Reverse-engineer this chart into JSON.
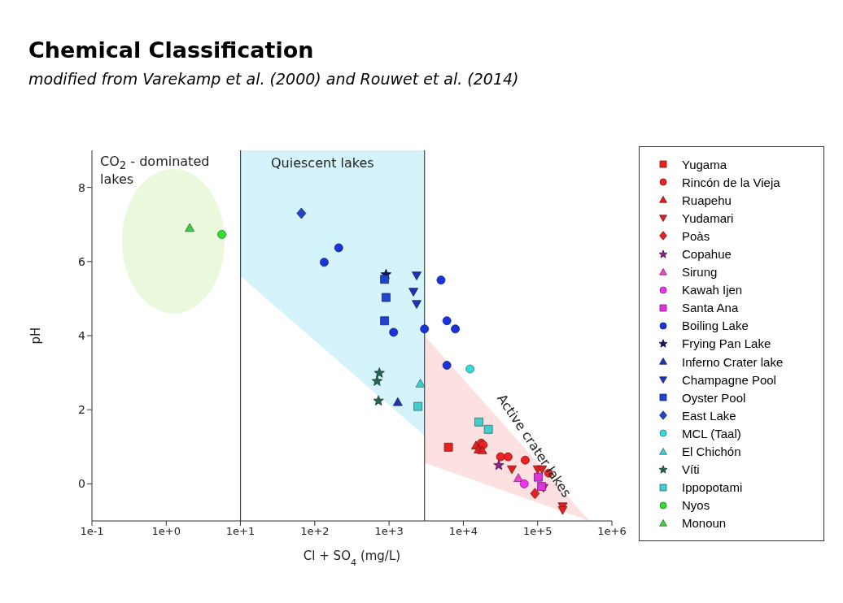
{
  "chart_data": {
    "type": "scatter",
    "title": "Chemical Classification",
    "subtitle": "modified from Varekamp et al. (2000) and Rouwet et al. (2014)",
    "xlabel": "Cl + SO$_{4}$ (mg/L)",
    "ylabel": "pH",
    "log": "x",
    "xlim": [
      0.1,
      1000000
    ],
    "xticks": [
      {
        "value": 0.1,
        "label": "1e-1"
      },
      {
        "value": 1,
        "label": "1e+0"
      },
      {
        "value": 10,
        "label": "1e+1"
      },
      {
        "value": 100,
        "label": "1e+2"
      },
      {
        "value": 1000,
        "label": "1e+3"
      },
      {
        "value": 10000,
        "label": "1e+4"
      },
      {
        "value": 100000,
        "label": "1e+5"
      },
      {
        "value": 1000000,
        "label": "1e+6"
      }
    ],
    "ylim": [
      -1,
      9
    ],
    "yticks": [
      0,
      2,
      4,
      6,
      8
    ],
    "legend": "right",
    "ref_lines": [
      {
        "axis": "x",
        "value": 10,
        "color": "#444444"
      },
      {
        "axis": "x",
        "value": 3000,
        "color": "#444444"
      }
    ],
    "annotations": [
      "CO$_{2}$ - dominated lakes",
      "Quiescent lakes",
      "Active crater lakes"
    ],
    "series": [
      {
        "name": "Yugama",
        "color": "#e8221f",
        "marker": "square",
        "x": [
          6300
        ],
        "values": [
          0.99
        ]
      },
      {
        "name": "Rincón de la Vieja",
        "color": "#ee2222",
        "marker": "circle",
        "x": [
          17400,
          18500,
          31700,
          40000,
          68000,
          141000
        ],
        "values": [
          1.1,
          1.05,
          0.73,
          0.73,
          0.64,
          0.29
        ]
      },
      {
        "name": "Ruapehu",
        "color": "#dd2222",
        "marker": "triangle",
        "x": [
          14800,
          16000,
          18000
        ],
        "values": [
          1.03,
          0.92,
          0.9
        ]
      },
      {
        "name": "Yudamari",
        "color": "#dd2222",
        "marker": "triangle-down",
        "x": [
          45000,
          100000,
          115000,
          120000,
          217000,
          217000
        ],
        "values": [
          0.4,
          0.4,
          0.4,
          -0.1,
          -0.6,
          -0.7
        ]
      },
      {
        "name": "Poàs",
        "color": "#e62222",
        "marker": "diamond",
        "x": [
          92000
        ],
        "values": [
          -0.26
        ]
      },
      {
        "name": "Copahue",
        "color": "#882288",
        "marker": "star",
        "x": [
          30000
        ],
        "values": [
          0.5
        ]
      },
      {
        "name": "Sirung",
        "color": "#ee44cc",
        "marker": "triangle",
        "x": [
          55000
        ],
        "values": [
          0.15
        ]
      },
      {
        "name": "Kawah Ijen",
        "color": "#ee33ee",
        "marker": "circle",
        "x": [
          66000
        ],
        "values": [
          0.0
        ]
      },
      {
        "name": "Santa Ana",
        "color": "#dd33dd",
        "marker": "square",
        "x": [
          102000,
          113000
        ],
        "values": [
          0.18,
          -0.07
        ]
      },
      {
        "name": "Boiling Lake",
        "color": "#1a33dd",
        "marker": "circle",
        "x": [
          134,
          210,
          1150,
          3000,
          5000,
          6000,
          7800,
          6000
        ],
        "values": [
          5.98,
          6.37,
          4.09,
          4.18,
          5.5,
          4.4,
          4.18,
          3.2
        ]
      },
      {
        "name": "Frying Pan Lake",
        "color": "#111166",
        "marker": "star",
        "x": [
          910
        ],
        "values": [
          5.65
        ]
      },
      {
        "name": "Inferno Crater lake",
        "color": "#2233aa",
        "marker": "triangle",
        "x": [
          1310
        ],
        "values": [
          2.2
        ]
      },
      {
        "name": "Champagne Pool",
        "color": "#2233bb",
        "marker": "triangle-down",
        "x": [
          2350,
          2130,
          2350
        ],
        "values": [
          5.63,
          5.19,
          4.86
        ]
      },
      {
        "name": "Oyster Pool",
        "color": "#2244cc",
        "marker": "square",
        "x": [
          870,
          910,
          870
        ],
        "values": [
          5.52,
          5.03,
          4.4
        ]
      },
      {
        "name": "East Lake",
        "color": "#2244cc",
        "marker": "diamond",
        "x": [
          66
        ],
        "values": [
          7.3
        ]
      },
      {
        "name": "MCL (Taal)",
        "color": "#33dddd",
        "marker": "circle",
        "x": [
          12300
        ],
        "values": [
          3.1
        ]
      },
      {
        "name": "El Chichón",
        "color": "#44cccc",
        "marker": "triangle",
        "x": [
          2640
        ],
        "values": [
          2.7
        ]
      },
      {
        "name": "Víti",
        "color": "#226655",
        "marker": "star",
        "x": [
          740,
          690,
          720
        ],
        "values": [
          2.99,
          2.77,
          2.24
        ]
      },
      {
        "name": "Ippopotami",
        "color": "#44cccc",
        "marker": "square",
        "x": [
          2450,
          16200,
          21700
        ],
        "values": [
          2.09,
          1.67,
          1.47
        ]
      },
      {
        "name": "Nyos",
        "color": "#33dd33",
        "marker": "circle",
        "x": [
          5.6
        ],
        "values": [
          6.73
        ]
      },
      {
        "name": "Monoun",
        "color": "#44cc44",
        "marker": "triangle",
        "x": [
          2.07
        ],
        "values": [
          6.9
        ]
      }
    ]
  }
}
